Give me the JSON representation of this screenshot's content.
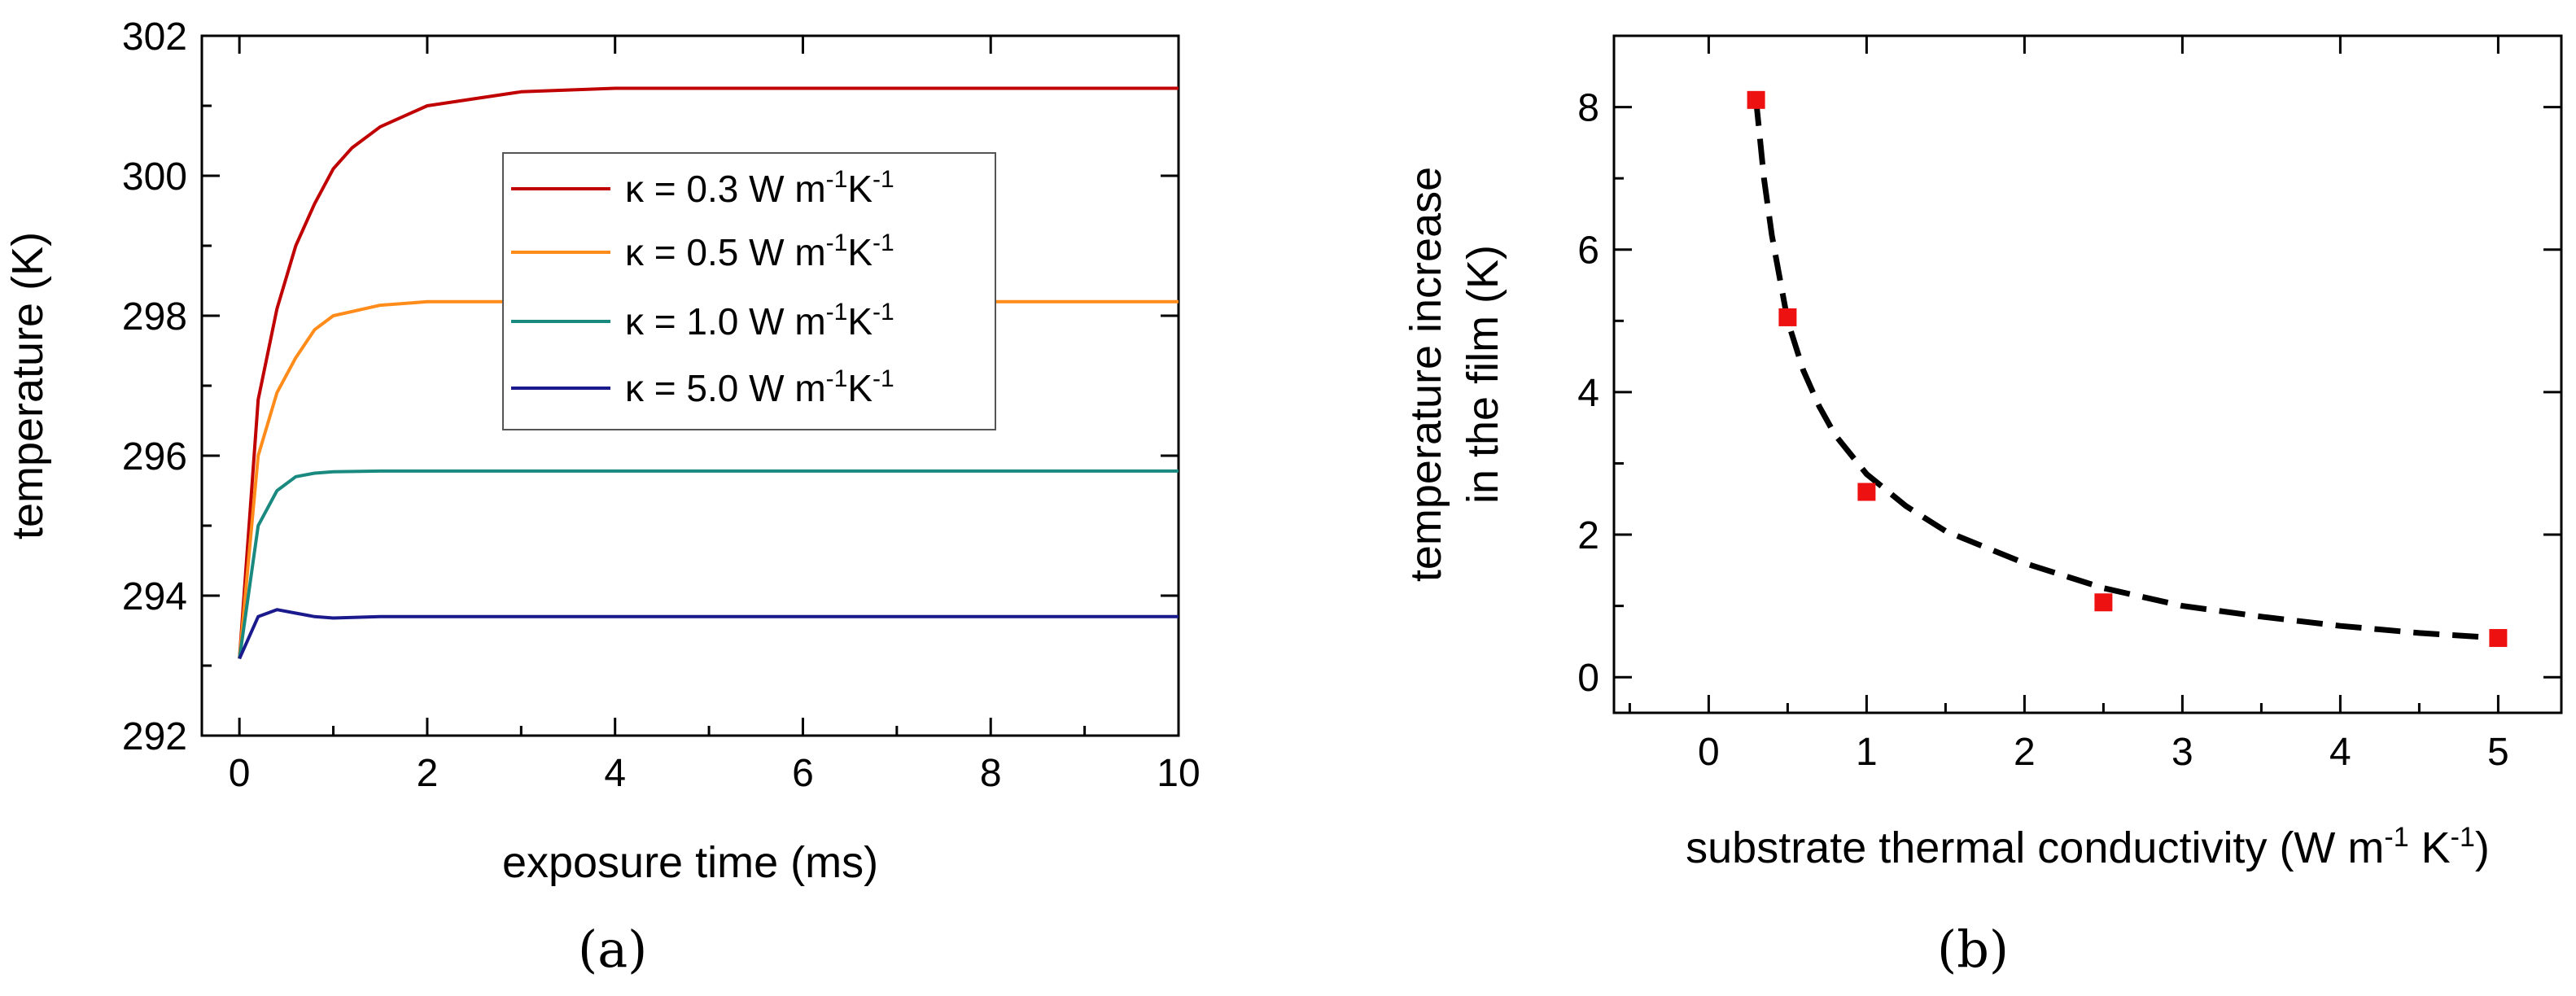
{
  "chart_data": [
    {
      "panel": "a",
      "type": "line",
      "xlabel": "exposure time (ms)",
      "ylabel": "temperature (K)",
      "xlim": [
        -0.4,
        10
      ],
      "ylim": [
        292,
        302
      ],
      "xticks": [
        0,
        2,
        4,
        6,
        8,
        10
      ],
      "yticks": [
        292,
        294,
        296,
        298,
        300,
        302
      ],
      "grid": false,
      "legend_position": "upper-middle",
      "series": [
        {
          "name": "κ = 0.3 W m⁻¹K⁻¹",
          "label_main": "κ = 0.3 W m",
          "sup1": "-1",
          "unit2": "K",
          "sup2": "-1",
          "color": "#c00000",
          "x": [
            0,
            0.2,
            0.4,
            0.6,
            0.8,
            1.0,
            1.2,
            1.5,
            2.0,
            2.5,
            3.0,
            4.0,
            5.0,
            6.0,
            8.0,
            10.0
          ],
          "y": [
            293.1,
            296.8,
            298.1,
            299.0,
            299.6,
            300.1,
            300.4,
            300.7,
            301.0,
            301.1,
            301.2,
            301.25,
            301.25,
            301.25,
            301.25,
            301.25
          ]
        },
        {
          "name": "κ = 0.5 W m⁻¹K⁻¹",
          "label_main": "κ = 0.5 W m",
          "sup1": "-1",
          "unit2": "K",
          "sup2": "-1",
          "color": "#ff8c1a",
          "x": [
            0,
            0.2,
            0.4,
            0.6,
            0.8,
            1.0,
            1.5,
            2.0,
            3.0,
            5.0,
            10.0
          ],
          "y": [
            293.1,
            296.0,
            296.9,
            297.4,
            297.8,
            298.0,
            298.15,
            298.2,
            298.2,
            298.2,
            298.2
          ]
        },
        {
          "name": "κ = 1.0 W m⁻¹K⁻¹",
          "label_main": "κ = 1.0 W m",
          "sup1": "-1",
          "unit2": "K",
          "sup2": "-1",
          "color": "#1a8a80",
          "x": [
            0,
            0.2,
            0.4,
            0.6,
            0.8,
            1.0,
            1.5,
            3.0,
            10.0
          ],
          "y": [
            293.1,
            295.0,
            295.5,
            295.7,
            295.75,
            295.77,
            295.78,
            295.78,
            295.78
          ]
        },
        {
          "name": "κ = 5.0 W m⁻¹K⁻¹",
          "label_main": "κ = 5.0 W m",
          "sup1": "-1",
          "unit2": "K",
          "sup2": "-1",
          "color": "#1a1a8c",
          "x": [
            0,
            0.2,
            0.4,
            0.6,
            0.8,
            1.0,
            1.5,
            3.0,
            10.0
          ],
          "y": [
            293.1,
            293.7,
            293.8,
            293.75,
            293.7,
            293.68,
            293.7,
            293.7,
            293.7
          ]
        }
      ],
      "caption": "(a)"
    },
    {
      "panel": "b",
      "type": "scatter",
      "xlabel_main": "substrate thermal conductivity (W m",
      "xlabel_sup1": "-1",
      "xlabel_unit2": " K",
      "xlabel_sup2": "-1",
      "xlabel_close": ")",
      "ylabel_line1": "temperature increase",
      "ylabel_line2": "in the film (K)",
      "xlim": [
        -0.6,
        5.4
      ],
      "ylim": [
        -0.5,
        9
      ],
      "xticks": [
        0,
        1,
        2,
        3,
        4,
        5
      ],
      "yticks": [
        0,
        2,
        4,
        6,
        8
      ],
      "grid": false,
      "points": {
        "color": "#ee1111",
        "x": [
          0.3,
          0.5,
          1.0,
          2.5,
          5.0
        ],
        "y": [
          8.1,
          5.05,
          2.6,
          1.05,
          0.55
        ]
      },
      "fit": {
        "style": "dashed",
        "color": "#000000",
        "x": [
          0.3,
          0.35,
          0.4,
          0.5,
          0.6,
          0.7,
          0.8,
          1.0,
          1.25,
          1.5,
          2.0,
          2.5,
          3.0,
          3.5,
          4.0,
          4.5,
          5.0
        ],
        "y": [
          8.1,
          7.0,
          6.2,
          5.0,
          4.3,
          3.8,
          3.4,
          2.85,
          2.4,
          2.05,
          1.6,
          1.25,
          1.0,
          0.85,
          0.72,
          0.62,
          0.55
        ]
      },
      "caption": "(b)"
    }
  ]
}
